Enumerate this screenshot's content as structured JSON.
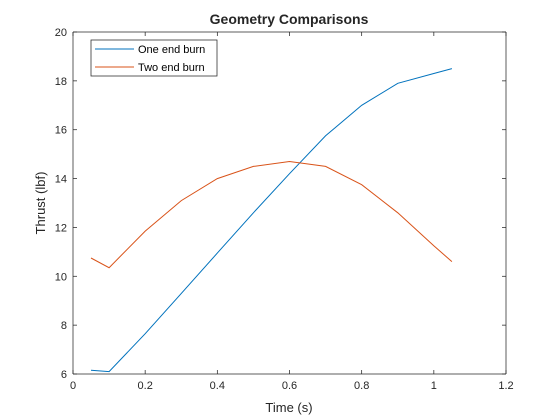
{
  "chart_data": {
    "type": "line",
    "title": "Geometry Comparisons",
    "xlabel": "Time (s)",
    "ylabel": "Thrust (lbf)",
    "xlim": [
      0,
      1.2
    ],
    "ylim": [
      6,
      20
    ],
    "xticks": [
      0,
      0.2,
      0.4,
      0.6,
      0.8,
      1,
      1.2
    ],
    "xtick_labels": [
      "0",
      "0.2",
      "0.4",
      "0.6",
      "0.8",
      "1",
      "1.2"
    ],
    "yticks": [
      6,
      8,
      10,
      12,
      14,
      16,
      18,
      20
    ],
    "ytick_labels": [
      "6",
      "8",
      "10",
      "12",
      "14",
      "16",
      "18",
      "20"
    ],
    "grid": false,
    "legend_position": "top-left",
    "series": [
      {
        "name": "One end burn",
        "color": "#0072BD",
        "x": [
          0.05,
          0.1,
          0.2,
          0.3,
          0.4,
          0.5,
          0.6,
          0.7,
          0.8,
          0.9,
          1.0,
          1.05
        ],
        "y": [
          6.15,
          6.1,
          7.65,
          9.3,
          10.95,
          12.6,
          14.2,
          15.75,
          17.0,
          17.9,
          18.3,
          18.5
        ]
      },
      {
        "name": "Two end burn",
        "color": "#D95319",
        "x": [
          0.05,
          0.1,
          0.2,
          0.3,
          0.4,
          0.5,
          0.6,
          0.7,
          0.8,
          0.9,
          1.0,
          1.05
        ],
        "y": [
          10.75,
          10.35,
          11.85,
          13.1,
          14.0,
          14.5,
          14.7,
          14.5,
          13.75,
          12.6,
          11.25,
          10.6
        ]
      }
    ]
  }
}
